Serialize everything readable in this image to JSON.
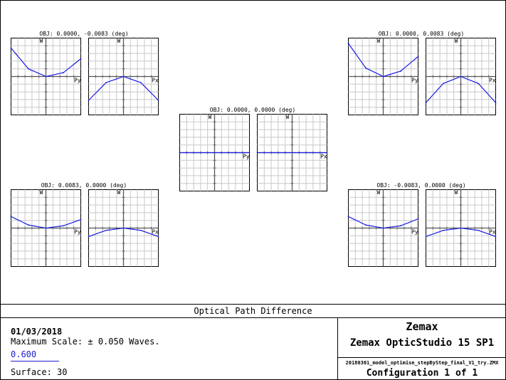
{
  "footer": {
    "title": "Optical Path Difference",
    "date": "01/03/2018",
    "scale": "Maximum Scale: ± 0.050 Waves.",
    "wavelength": "0.600",
    "surface": "Surface: 30",
    "brand": "Zemax",
    "product": "Zemax OpticStudio 15 SP1",
    "filename": "20180301_model_optimise_stepByStep_final_V1_try.ZMX",
    "configuration": "Configuration 1 of 1"
  },
  "chart_data": {
    "type": "line",
    "series_color": "#1a1ae6",
    "max_scale_waves": 0.05,
    "pupil_range": [
      -1,
      1
    ],
    "ylim": [
      -0.05,
      0.05
    ],
    "grid": true,
    "ylabel": "W",
    "fields": [
      {
        "title": "OBJ: 0.0000, -0.0083 (deg)",
        "tangential": {
          "xlabel": "Py",
          "x": [
            -1,
            -0.5,
            0,
            0.5,
            1
          ],
          "y": [
            0.037,
            0.01,
            0.0,
            0.005,
            0.023
          ]
        },
        "sagittal": {
          "xlabel": "Px",
          "x": [
            -1,
            -0.5,
            0,
            0.5,
            1
          ],
          "y": [
            -0.031,
            -0.008,
            0.0,
            -0.008,
            -0.031
          ]
        }
      },
      {
        "title": "OBJ: 0.0000, 0.0083 (deg)",
        "tangential": {
          "xlabel": "Py",
          "x": [
            -1,
            -0.5,
            0,
            0.5,
            1
          ],
          "y": [
            0.043,
            0.011,
            0.0,
            0.007,
            0.026
          ]
        },
        "sagittal": {
          "xlabel": "Px",
          "x": [
            -1,
            -0.5,
            0,
            0.5,
            1
          ],
          "y": [
            -0.034,
            -0.009,
            0.0,
            -0.009,
            -0.034
          ]
        }
      },
      {
        "title": "OBJ: 0.0000, 0.0000 (deg)",
        "tangential": {
          "xlabel": "Py",
          "x": [
            -1,
            -0.5,
            0,
            0.5,
            1
          ],
          "y": [
            0.0,
            0.0,
            0.0,
            0.0,
            0.0
          ]
        },
        "sagittal": {
          "xlabel": "Px",
          "x": [
            -1,
            -0.5,
            0,
            0.5,
            1
          ],
          "y": [
            0.0,
            0.0,
            0.0,
            0.0,
            0.0
          ]
        }
      },
      {
        "title": "OBJ: 0.0083, 0.0000 (deg)",
        "tangential": {
          "xlabel": "Py",
          "x": [
            -1,
            -0.5,
            0,
            0.5,
            1
          ],
          "y": [
            0.015,
            0.004,
            0.0,
            0.003,
            0.011
          ]
        },
        "sagittal": {
          "xlabel": "Px",
          "x": [
            -1,
            -0.5,
            0,
            0.5,
            1
          ],
          "y": [
            -0.011,
            -0.003,
            0.0,
            -0.003,
            -0.011
          ]
        }
      },
      {
        "title": "OBJ: -0.0083, 0.0000 (deg)",
        "tangential": {
          "xlabel": "Py",
          "x": [
            -1,
            -0.5,
            0,
            0.5,
            1
          ],
          "y": [
            0.015,
            0.004,
            0.0,
            0.003,
            0.012
          ]
        },
        "sagittal": {
          "xlabel": "Px",
          "x": [
            -1,
            -0.5,
            0,
            0.5,
            1
          ],
          "y": [
            -0.011,
            -0.003,
            0.0,
            -0.003,
            -0.011
          ]
        }
      }
    ]
  }
}
